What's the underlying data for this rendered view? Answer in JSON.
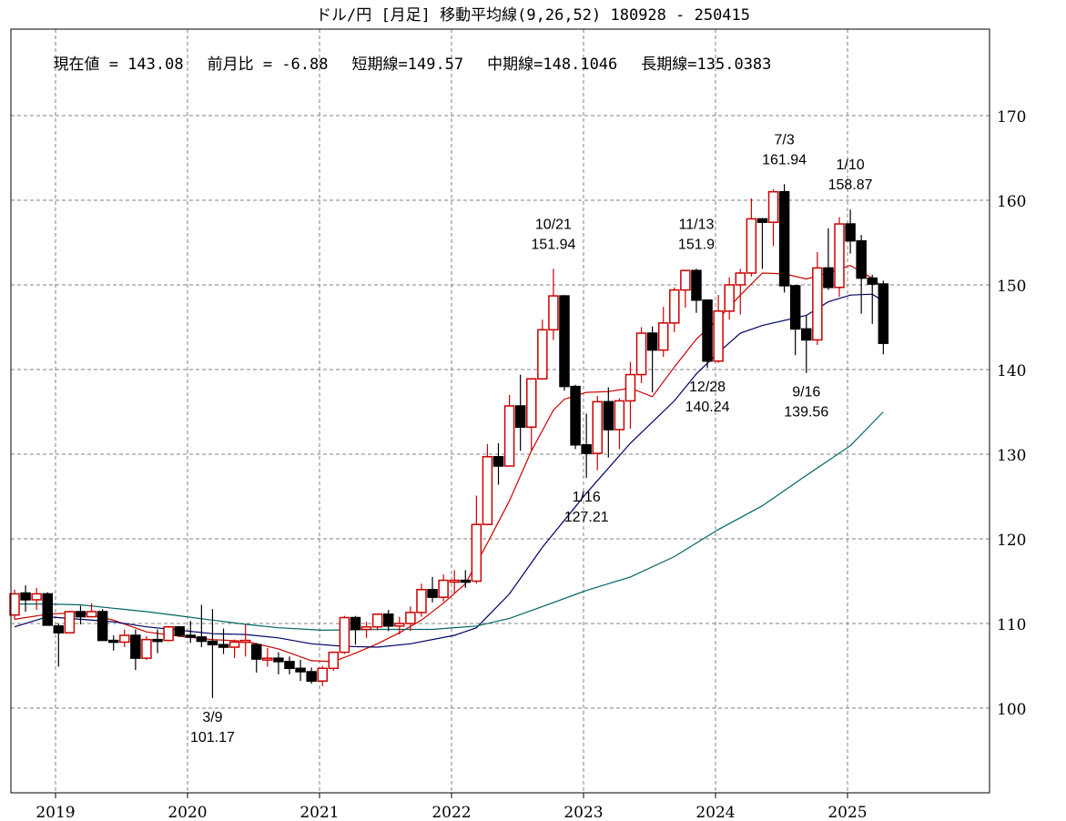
{
  "header": {
    "title": "ドル/円 [月足]  移動平均線(9,26,52)  180928 - 250415",
    "current_value_label": "現在値 = 143.08",
    "change_label": "前月比 = -6.88",
    "short_ma_label": "短期線=149.57",
    "mid_ma_label": "中期線=148.1046",
    "long_ma_label": "長期線=135.0383"
  },
  "colors": {
    "up_candle": "#cc0000",
    "down_candle": "#000000",
    "short_ma": "#cc0000",
    "mid_ma": "#000066",
    "long_ma": "#006666",
    "grid": "#808080",
    "axis": "#000000"
  },
  "chart_data": {
    "type": "candlestick",
    "title": "ドル/円 [月足] 移動平均線(9,26,52) 180928 - 250415",
    "xlabel": "",
    "ylabel": "",
    "ylim": [
      90,
      179
    ],
    "y_ticks": [
      100,
      110,
      120,
      130,
      140,
      150,
      160,
      170
    ],
    "x_ticks": [
      "2019",
      "2020",
      "2021",
      "2022",
      "2023",
      "2024",
      "2025"
    ],
    "grid": true,
    "period_start": "2018-09",
    "ohlc": [
      [
        "2018-09",
        111.0,
        114.0,
        110.5,
        113.5
      ],
      [
        "2018-10",
        113.6,
        114.5,
        111.4,
        112.8
      ],
      [
        "2018-11",
        112.8,
        114.2,
        111.6,
        113.5
      ],
      [
        "2018-12",
        113.5,
        113.7,
        109.9,
        109.8
      ],
      [
        "2019-01",
        109.7,
        110.0,
        104.9,
        108.9
      ],
      [
        "2019-02",
        108.9,
        111.5,
        108.9,
        111.4
      ],
      [
        "2019-03",
        111.4,
        112.1,
        109.9,
        110.8
      ],
      [
        "2019-04",
        110.8,
        112.4,
        110.8,
        111.4
      ],
      [
        "2019-05",
        111.4,
        111.7,
        108.5,
        108.0
      ],
      [
        "2019-06",
        108.0,
        108.6,
        106.8,
        107.8
      ],
      [
        "2019-07",
        107.8,
        109.3,
        107.2,
        108.6
      ],
      [
        "2019-08",
        108.6,
        109.3,
        104.5,
        105.9
      ],
      [
        "2019-09",
        105.9,
        108.5,
        105.7,
        108.1
      ],
      [
        "2019-10",
        108.1,
        109.3,
        106.5,
        108.0
      ],
      [
        "2019-11",
        108.0,
        109.7,
        107.9,
        109.6
      ],
      [
        "2019-12",
        109.6,
        109.7,
        108.4,
        108.6
      ],
      [
        "2020-01",
        108.6,
        110.3,
        107.7,
        108.4
      ],
      [
        "2020-02",
        108.4,
        112.2,
        107.2,
        107.9
      ],
      [
        "2020-03",
        107.9,
        111.7,
        101.2,
        107.5
      ],
      [
        "2020-04",
        107.5,
        109.4,
        106.4,
        107.2
      ],
      [
        "2020-05",
        107.2,
        108.1,
        105.9,
        107.8
      ],
      [
        "2020-06",
        107.8,
        109.9,
        106.1,
        108.0
      ],
      [
        "2020-07",
        107.5,
        107.7,
        104.2,
        105.8
      ],
      [
        "2020-08",
        105.8,
        107.1,
        104.9,
        105.9
      ],
      [
        "2020-09",
        105.9,
        106.6,
        104.0,
        105.5
      ],
      [
        "2020-10",
        105.5,
        106.1,
        104.0,
        104.7
      ],
      [
        "2020-11",
        104.7,
        105.7,
        103.2,
        104.3
      ],
      [
        "2020-12",
        104.3,
        104.8,
        102.9,
        103.2
      ],
      [
        "2021-01",
        103.2,
        105.0,
        102.6,
        104.7
      ],
      [
        "2021-02",
        104.7,
        106.6,
        104.4,
        106.6
      ],
      [
        "2021-03",
        106.6,
        110.9,
        106.4,
        110.7
      ],
      [
        "2021-04",
        110.7,
        110.9,
        107.5,
        109.3
      ],
      [
        "2021-05",
        109.3,
        110.2,
        108.3,
        109.6
      ],
      [
        "2021-06",
        109.6,
        111.1,
        109.2,
        111.1
      ],
      [
        "2021-07",
        111.1,
        111.6,
        109.1,
        109.7
      ],
      [
        "2021-08",
        109.7,
        110.8,
        108.7,
        110.0
      ],
      [
        "2021-09",
        110.0,
        112.0,
        109.1,
        111.3
      ],
      [
        "2021-10",
        111.3,
        114.7,
        110.8,
        114.0
      ],
      [
        "2021-11",
        114.0,
        115.5,
        112.5,
        113.1
      ],
      [
        "2021-12",
        113.1,
        115.8,
        112.6,
        115.1
      ],
      [
        "2022-01",
        115.1,
        116.3,
        113.5,
        115.1
      ],
      [
        "2022-02",
        115.1,
        116.3,
        114.2,
        115.0
      ],
      [
        "2022-03",
        115.0,
        125.1,
        114.7,
        121.7
      ],
      [
        "2022-04",
        121.7,
        131.2,
        121.6,
        129.7
      ],
      [
        "2022-05",
        129.7,
        131.3,
        126.4,
        128.6
      ],
      [
        "2022-06",
        128.6,
        137.0,
        128.6,
        135.7
      ],
      [
        "2022-07",
        135.7,
        139.4,
        130.4,
        133.2
      ],
      [
        "2022-08",
        133.2,
        139.0,
        130.4,
        138.9
      ],
      [
        "2022-09",
        138.9,
        145.9,
        138.9,
        144.7
      ],
      [
        "2022-10",
        144.7,
        151.9,
        143.5,
        148.7
      ],
      [
        "2022-11",
        148.7,
        148.8,
        137.5,
        138.0
      ],
      [
        "2022-12",
        138.0,
        138.2,
        130.6,
        131.1
      ],
      [
        "2023-01",
        131.1,
        134.8,
        127.2,
        130.1
      ],
      [
        "2023-02",
        130.1,
        136.9,
        128.1,
        136.2
      ],
      [
        "2023-03",
        136.2,
        137.9,
        129.6,
        132.9
      ],
      [
        "2023-04",
        132.9,
        136.6,
        130.6,
        136.3
      ],
      [
        "2023-05",
        136.3,
        140.9,
        133.0,
        139.4
      ],
      [
        "2023-06",
        139.4,
        145.0,
        138.4,
        144.3
      ],
      [
        "2023-07",
        144.3,
        145.1,
        137.3,
        142.3
      ],
      [
        "2023-08",
        142.3,
        147.4,
        141.5,
        145.5
      ],
      [
        "2023-09",
        145.5,
        149.7,
        144.4,
        149.4
      ],
      [
        "2023-10",
        149.4,
        151.7,
        147.3,
        151.7
      ],
      [
        "2023-11",
        151.7,
        151.9,
        146.7,
        148.2
      ],
      [
        "2023-12",
        148.2,
        148.3,
        140.2,
        141.0
      ],
      [
        "2024-01",
        141.0,
        148.8,
        140.8,
        146.9
      ],
      [
        "2024-02",
        146.9,
        150.9,
        145.9,
        150.0
      ],
      [
        "2024-03",
        150.0,
        151.9,
        146.5,
        151.4
      ],
      [
        "2024-04",
        151.4,
        160.2,
        151.0,
        157.8
      ],
      [
        "2024-05",
        157.8,
        157.9,
        151.9,
        157.4
      ],
      [
        "2024-06",
        157.4,
        161.3,
        154.6,
        161.0
      ],
      [
        "2024-07",
        161.0,
        161.9,
        149.1,
        149.9
      ],
      [
        "2024-08",
        149.9,
        150.0,
        141.7,
        144.8
      ],
      [
        "2024-09",
        144.8,
        146.4,
        139.6,
        143.5
      ],
      [
        "2024-10",
        143.5,
        153.9,
        142.9,
        152.0
      ],
      [
        "2024-11",
        152.0,
        156.7,
        149.4,
        149.7
      ],
      [
        "2024-12",
        149.7,
        158.0,
        148.6,
        157.2
      ],
      [
        "2025-01",
        157.2,
        158.9,
        153.7,
        155.2
      ],
      [
        "2025-02",
        155.2,
        155.9,
        146.6,
        150.8
      ],
      [
        "2025-03",
        150.8,
        151.2,
        145.4,
        150.1
      ],
      [
        "2025-04",
        150.1,
        150.5,
        141.8,
        143.1
      ]
    ],
    "series": [
      {
        "name": "短期線 (9)",
        "color": "#cc0000",
        "values": [
          [
            0,
            110.5
          ],
          [
            3,
            111.1
          ],
          [
            6,
            111.3
          ],
          [
            9,
            110.4
          ],
          [
            12,
            109.0
          ],
          [
            15,
            108.5
          ],
          [
            18,
            108.1
          ],
          [
            21,
            107.9
          ],
          [
            24,
            107.0
          ],
          [
            27,
            105.6
          ],
          [
            29,
            105.5
          ],
          [
            31,
            106.5
          ],
          [
            33,
            107.6
          ],
          [
            35,
            108.9
          ],
          [
            37,
            110.4
          ],
          [
            39,
            112.4
          ],
          [
            41,
            114.7
          ],
          [
            43,
            119.5
          ],
          [
            45,
            124.5
          ],
          [
            47,
            130.4
          ],
          [
            49,
            135.2
          ],
          [
            50,
            136.5
          ],
          [
            52,
            137.3
          ],
          [
            54,
            137.4
          ],
          [
            56,
            137.8
          ],
          [
            58,
            136.8
          ],
          [
            60,
            140.3
          ],
          [
            62,
            143.6
          ],
          [
            64,
            146.0
          ],
          [
            66,
            148.8
          ],
          [
            68,
            151.4
          ],
          [
            70,
            151.3
          ],
          [
            72,
            150.7
          ],
          [
            74,
            151.4
          ],
          [
            76,
            152.3
          ],
          [
            78,
            150.8
          ],
          [
            79,
            149.6
          ]
        ]
      },
      {
        "name": "中期線 (26)",
        "color": "#000066",
        "values": [
          [
            0,
            109.6
          ],
          [
            3,
            110.8
          ],
          [
            6,
            110.5
          ],
          [
            9,
            110.2
          ],
          [
            12,
            109.6
          ],
          [
            15,
            109.2
          ],
          [
            18,
            108.8
          ],
          [
            21,
            108.7
          ],
          [
            24,
            108.3
          ],
          [
            27,
            107.6
          ],
          [
            30,
            107.3
          ],
          [
            33,
            107.2
          ],
          [
            36,
            107.6
          ],
          [
            40,
            108.6
          ],
          [
            42,
            109.5
          ],
          [
            45,
            113.5
          ],
          [
            48,
            119.0
          ],
          [
            52,
            125.4
          ],
          [
            56,
            131.3
          ],
          [
            60,
            136.3
          ],
          [
            62,
            139.5
          ],
          [
            64,
            142.0
          ],
          [
            66,
            144.3
          ],
          [
            68,
            145.2
          ],
          [
            70,
            145.8
          ],
          [
            72,
            146.4
          ],
          [
            74,
            148.0
          ],
          [
            76,
            148.8
          ],
          [
            78,
            148.9
          ],
          [
            79,
            148.1
          ]
        ]
      },
      {
        "name": "長期線 (52)",
        "color": "#006666",
        "values": [
          [
            0,
            112.3
          ],
          [
            3,
            112.3
          ],
          [
            6,
            112.2
          ],
          [
            9,
            111.8
          ],
          [
            12,
            111.4
          ],
          [
            15,
            110.9
          ],
          [
            18,
            110.4
          ],
          [
            21,
            109.9
          ],
          [
            24,
            109.5
          ],
          [
            28,
            109.2
          ],
          [
            33,
            109.3
          ],
          [
            38,
            109.3
          ],
          [
            42,
            109.7
          ],
          [
            45,
            110.6
          ],
          [
            48,
            112.0
          ],
          [
            52,
            113.9
          ],
          [
            56,
            115.5
          ],
          [
            60,
            117.9
          ],
          [
            64,
            121.1
          ],
          [
            68,
            123.9
          ],
          [
            72,
            127.5
          ],
          [
            76,
            131.0
          ],
          [
            79,
            135.0
          ]
        ]
      }
    ],
    "annotations": [
      {
        "label_date": "3/9",
        "label_value": "101.17",
        "month_index": 18,
        "position": "below"
      },
      {
        "label_date": "10/21",
        "label_value": "151.94",
        "month_index": 49,
        "position": "above"
      },
      {
        "label_date": "1/16",
        "label_value": "127.21",
        "month_index": 52,
        "position": "below"
      },
      {
        "label_date": "11/13",
        "label_value": "151.9",
        "month_index": 62,
        "position": "above"
      },
      {
        "label_date": "12/28",
        "label_value": "140.24",
        "month_index": 63,
        "position": "below"
      },
      {
        "label_date": "7/3",
        "label_value": "161.94",
        "month_index": 70,
        "position": "above"
      },
      {
        "label_date": "9/16",
        "label_value": "139.56",
        "month_index": 72,
        "position": "below"
      },
      {
        "label_date": "1/10",
        "label_value": "158.87",
        "month_index": 76,
        "position": "above"
      }
    ]
  }
}
